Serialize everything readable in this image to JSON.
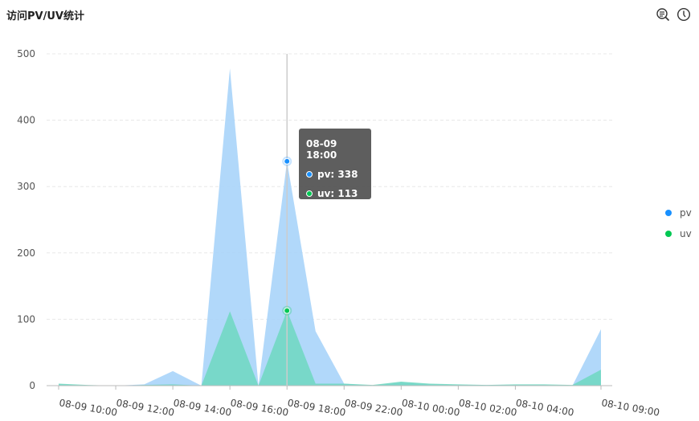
{
  "header": {
    "title": "访问PV/UV统计",
    "icons": [
      "zoom-list-icon",
      "clock-icon"
    ]
  },
  "tooltip": {
    "title": "08-09 18:00",
    "pv": "pv: 338",
    "uv": "uv: 113"
  },
  "legend": {
    "items": [
      {
        "label": "pv",
        "color": "#1890ff"
      },
      {
        "label": "uv",
        "color": "#00c853"
      }
    ],
    "placement": "right"
  },
  "chart_data": {
    "type": "area",
    "title": "访问PV/UV统计",
    "categories": [
      "08-09 10:00",
      "",
      "08-09 12:00",
      "",
      "08-09 14:00",
      "",
      "08-09 16:00",
      "",
      "08-09 18:00",
      "",
      "08-09 22:00",
      "",
      "08-10 00:00",
      "",
      "08-10 02:00",
      "",
      "08-10 04:00",
      "",
      "",
      "08-10 09:00"
    ],
    "series": [
      {
        "name": "pv",
        "color": "#a8d4fa",
        "values": [
          2,
          0,
          0,
          2,
          22,
          0,
          478,
          0,
          338,
          82,
          3,
          0,
          5,
          2,
          1,
          1,
          1,
          1,
          0,
          85
        ]
      },
      {
        "name": "uv",
        "color": "#6fd8c0",
        "values": [
          3,
          1,
          0,
          1,
          2,
          0,
          112,
          0,
          113,
          3,
          3,
          1,
          6,
          3,
          2,
          1,
          2,
          2,
          1,
          24
        ]
      }
    ],
    "ylim": [
      0,
      500
    ],
    "yticks": [
      "0",
      "100",
      "200",
      "300",
      "400",
      "500"
    ],
    "grid": true,
    "highlight_index": 8
  }
}
